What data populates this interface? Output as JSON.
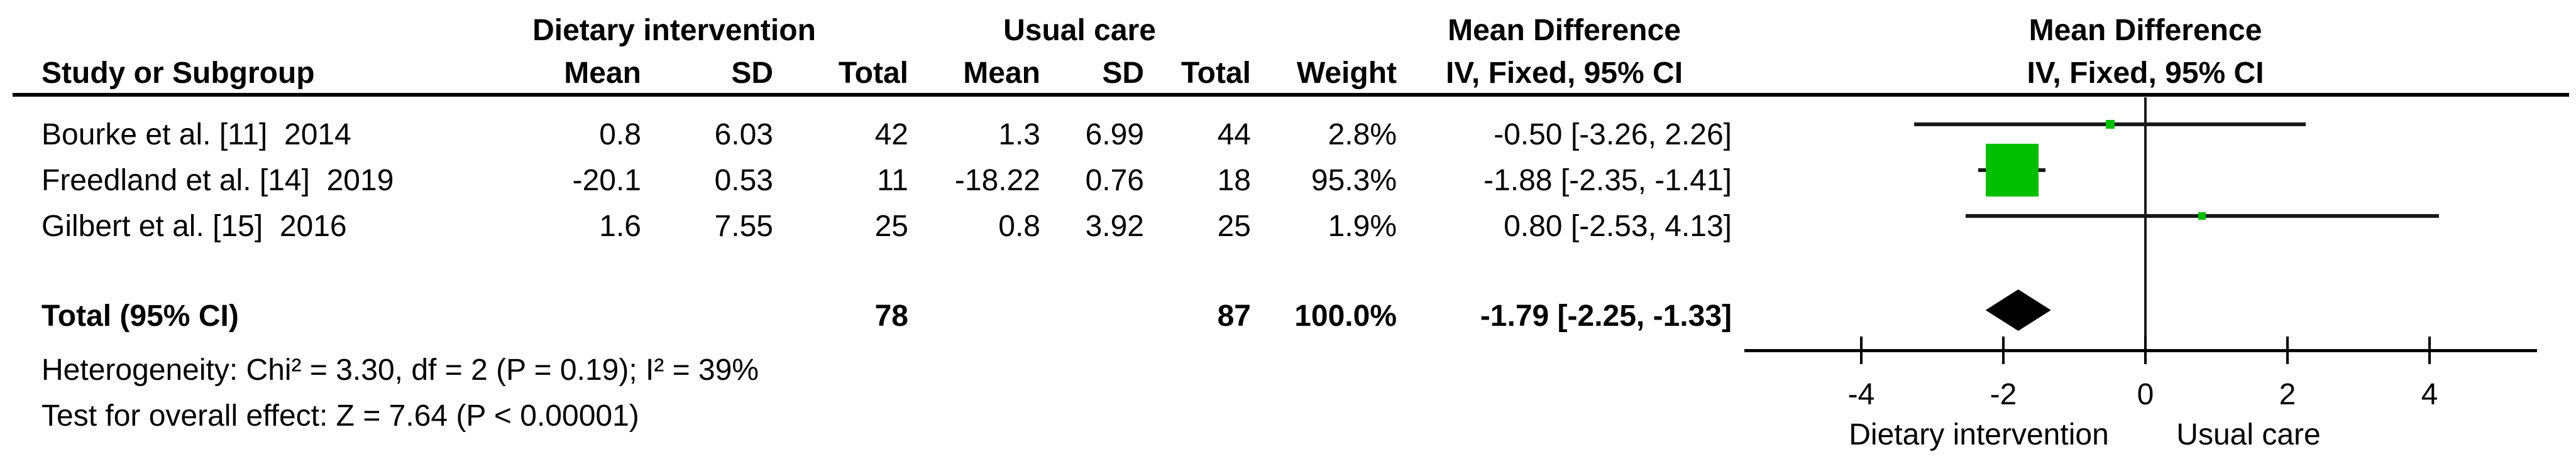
{
  "table": {
    "group_headers": {
      "dietary": "Dietary intervention",
      "usual": "Usual care",
      "mean_difference": "Mean Difference"
    },
    "columns": {
      "study": "Study or Subgroup",
      "mean": "Mean",
      "sd": "SD",
      "total": "Total",
      "weight": "Weight",
      "ci": "IV, Fixed, 95% CI"
    }
  },
  "plot_header": {
    "line1": "Mean Difference",
    "line2": "IV, Fixed, 95% CI"
  },
  "footnotes": {
    "heterogeneity": "Heterogeneity: Chi² = 3.30, df = 2 (P = 0.19); I² = 39%",
    "overall_effect": "Test for overall effect: Z = 7.64 (P < 0.00001)"
  },
  "chart_data": {
    "type": "forest",
    "effect_measure": "Mean Difference",
    "method": "IV, Fixed, 95% CI",
    "marker_color": "#00BE00",
    "axis": {
      "ticks": [
        -4,
        -2,
        0,
        2,
        4
      ],
      "min": -5.6,
      "max": 5.5,
      "left_label": "Dietary intervention",
      "right_label": "Usual care"
    },
    "studies": [
      {
        "name": "Bourke et al. [11]  2014",
        "dietary": {
          "mean": "0.8",
          "sd": "6.03",
          "total": "42"
        },
        "usual": {
          "mean": "1.3",
          "sd": "6.99",
          "total": "44"
        },
        "weight": "2.8%",
        "ci": "-0.50 [-3.26, 2.26]",
        "est": -0.5,
        "lo": -3.26,
        "hi": 2.26,
        "weight_pct": 2.8
      },
      {
        "name": "Freedland et al. [14]  2019",
        "dietary": {
          "mean": "-20.1",
          "sd": "0.53",
          "total": "11"
        },
        "usual": {
          "mean": "-18.22",
          "sd": "0.76",
          "total": "18"
        },
        "weight": "95.3%",
        "ci": "-1.88 [-2.35, -1.41]",
        "est": -1.88,
        "lo": -2.35,
        "hi": -1.41,
        "weight_pct": 95.3
      },
      {
        "name": "Gilbert et al. [15]  2016",
        "dietary": {
          "mean": "1.6",
          "sd": "7.55",
          "total": "25"
        },
        "usual": {
          "mean": "0.8",
          "sd": "3.92",
          "total": "25"
        },
        "weight": "1.9%",
        "ci": "0.80 [-2.53, 4.13]",
        "est": 0.8,
        "lo": -2.53,
        "hi": 4.13,
        "weight_pct": 1.9
      }
    ],
    "total": {
      "label": "Total (95% CI)",
      "dietary_total": "78",
      "usual_total": "87",
      "weight": "100.0%",
      "ci": "-1.79 [-2.25, -1.33]",
      "est": -1.79,
      "lo": -2.25,
      "hi": -1.33
    }
  }
}
